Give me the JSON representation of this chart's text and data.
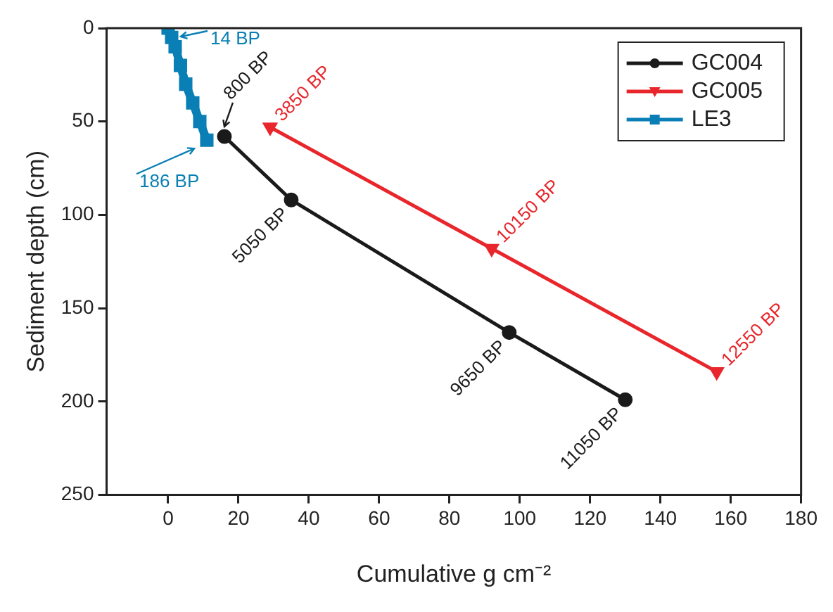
{
  "chart_data": {
    "type": "line",
    "xlabel": "Cumulative g cm⁻²",
    "ylabel": "Sediment depth (cm)",
    "xlim": [
      -17.5,
      180
    ],
    "xticks": [
      0,
      20,
      40,
      60,
      80,
      100,
      120,
      140,
      160,
      180
    ],
    "ylim": [
      250,
      0
    ],
    "yticks": [
      0,
      50,
      100,
      150,
      200,
      250
    ],
    "grid": false,
    "legend": "top right",
    "series": [
      {
        "name": "GC004",
        "color": "#1a1a1a",
        "marker": "circle",
        "x": [
          16,
          35,
          97,
          130
        ],
        "values": [
          58,
          92,
          163,
          199
        ]
      },
      {
        "name": "GC005",
        "color": "#e8262b",
        "marker": "triangle",
        "x": [
          29,
          92,
          156
        ],
        "values": [
          53,
          118,
          184
        ]
      },
      {
        "name": "LE3",
        "color": "#0a7fb5",
        "marker": "square",
        "x": [
          0,
          1,
          2,
          3.5,
          5,
          7,
          9,
          11
        ],
        "values": [
          0,
          5,
          10,
          20,
          30,
          40,
          50,
          60
        ]
      }
    ],
    "annotations": [
      {
        "text": "14 BP",
        "x": 0,
        "y": 0
      },
      {
        "text": "186 BP",
        "x": 11,
        "y": 60
      },
      {
        "text": "800 BP",
        "x": 16,
        "y": 58
      },
      {
        "text": "5050 BP",
        "x": 35,
        "y": 92
      },
      {
        "text": "9650 BP",
        "x": 97,
        "y": 163
      },
      {
        "text": "11050 BP",
        "x": 130,
        "y": 199
      },
      {
        "text": "3850 BP",
        "x": 29,
        "y": 53
      },
      {
        "text": "10150 BP",
        "x": 92,
        "y": 118
      },
      {
        "text": "12550 BP",
        "x": 156,
        "y": 184
      }
    ]
  }
}
